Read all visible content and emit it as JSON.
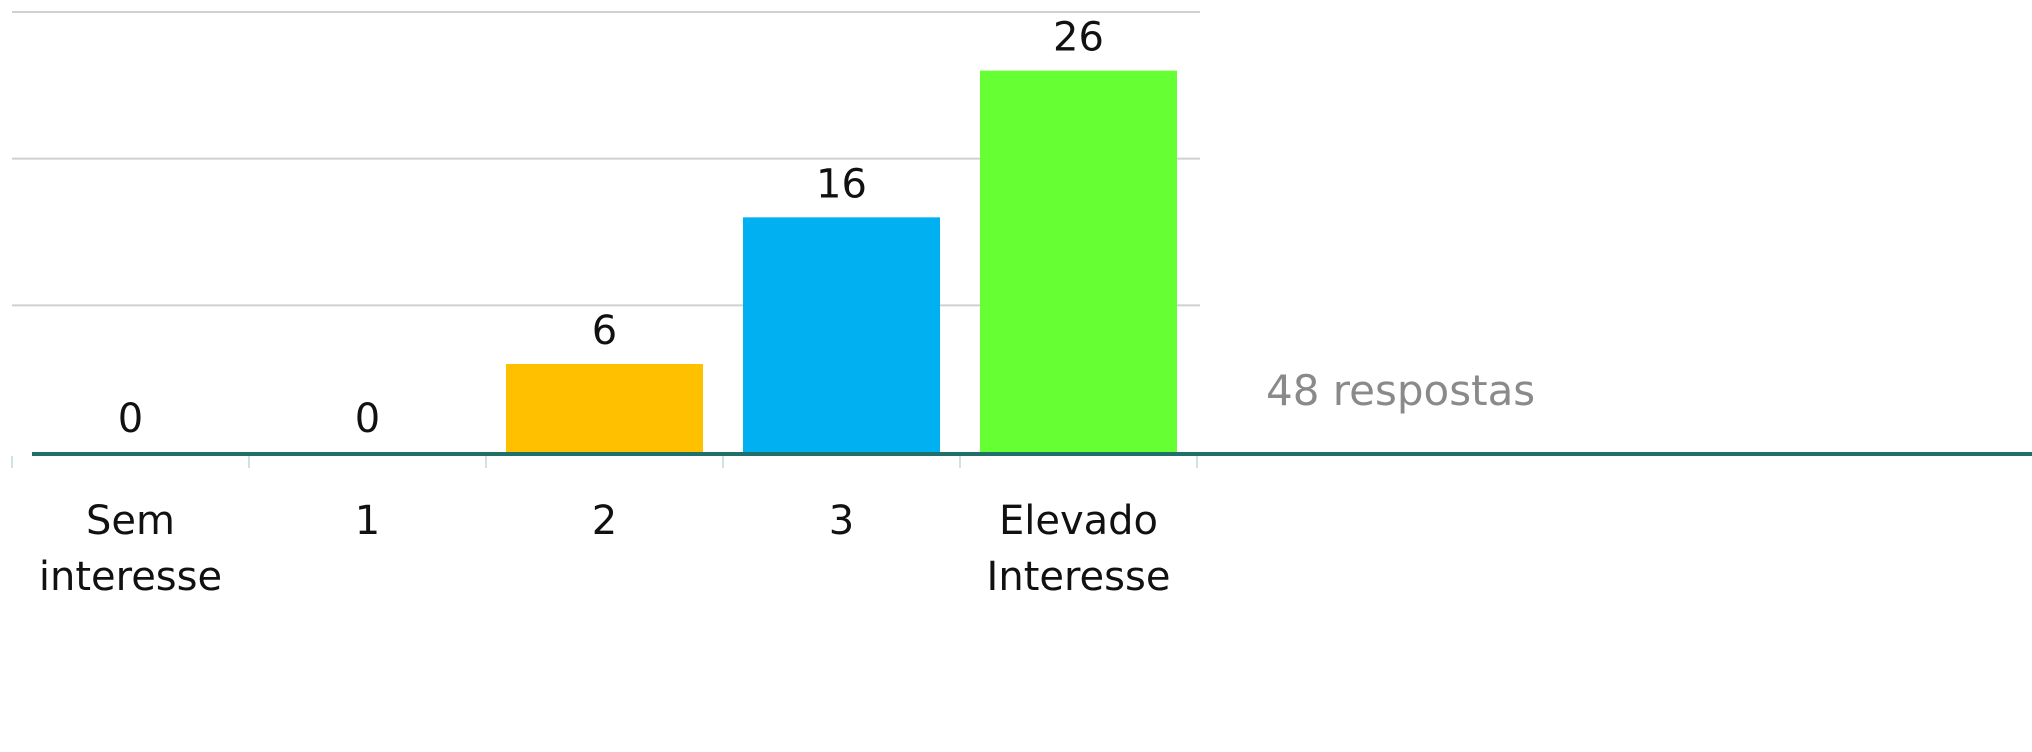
{
  "chart_data": {
    "type": "bar",
    "categories": [
      "Sem interesse",
      "1",
      "2",
      "3",
      "Elevado Interesse"
    ],
    "values": [
      0,
      0,
      6,
      16,
      26
    ],
    "colors": [
      "#ffc000",
      "#ffc000",
      "#ffc000",
      "#00b0f0",
      "#66ff33"
    ],
    "ylim": [
      0,
      30
    ],
    "gridlines": [
      10,
      20,
      30
    ],
    "grid": true,
    "axis_color": "#1f6f6a",
    "gridline_color": "#d0d0d0",
    "title": "",
    "xlabel": "",
    "ylabel": ""
  },
  "note": {
    "text": "48 respostas",
    "color": "#8a8a8a"
  }
}
